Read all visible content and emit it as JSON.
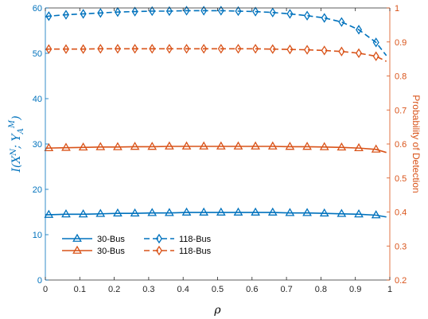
{
  "chart_data": {
    "type": "line",
    "title": "",
    "xlabel": "ρ",
    "ylabel_left": "I(X^N; Y_A^M)",
    "ylabel_right": "Probability of Detection",
    "xlim": [
      0,
      1
    ],
    "ylim_left": [
      0,
      60
    ],
    "ylim_right": [
      0.2,
      1.0
    ],
    "xticks": [
      "0",
      "0.1",
      "0.2",
      "0.3",
      "0.4",
      "0.5",
      "0.6",
      "0.7",
      "0.8",
      "0.9",
      "1"
    ],
    "yticks_left": [
      "0",
      "10",
      "20",
      "30",
      "40",
      "50",
      "60"
    ],
    "yticks_right": [
      "0.2",
      "0.3",
      "0.4",
      "0.5",
      "0.6",
      "0.7",
      "0.8",
      "0.9",
      "1"
    ],
    "colors": {
      "left": "#0072BD",
      "right": "#D95319"
    },
    "legend_position": "bottom-left",
    "series": [
      {
        "name": "30-Bus",
        "axis": "left",
        "color": "#0072BD",
        "linestyle": "solid",
        "marker": "triangle",
        "x": [
          0,
          0.01,
          0.06,
          0.11,
          0.16,
          0.21,
          0.26,
          0.31,
          0.36,
          0.41,
          0.46,
          0.51,
          0.56,
          0.61,
          0.66,
          0.71,
          0.76,
          0.81,
          0.86,
          0.91,
          0.96,
          0.99
        ],
        "y": [
          14.4,
          14.4,
          14.5,
          14.5,
          14.6,
          14.7,
          14.7,
          14.8,
          14.8,
          14.9,
          14.9,
          14.9,
          14.9,
          14.9,
          14.9,
          14.8,
          14.8,
          14.7,
          14.6,
          14.5,
          14.3,
          13.9
        ]
      },
      {
        "name": "118-Bus",
        "axis": "left",
        "color": "#0072BD",
        "linestyle": "dashed",
        "marker": "diamond",
        "x": [
          0,
          0.01,
          0.06,
          0.11,
          0.16,
          0.21,
          0.26,
          0.31,
          0.36,
          0.41,
          0.46,
          0.51,
          0.56,
          0.61,
          0.66,
          0.71,
          0.76,
          0.81,
          0.86,
          0.91,
          0.96,
          0.99
        ],
        "y": [
          58.0,
          58.2,
          58.5,
          58.7,
          58.9,
          59.1,
          59.2,
          59.3,
          59.3,
          59.4,
          59.4,
          59.4,
          59.3,
          59.2,
          59.0,
          58.7,
          58.3,
          57.8,
          56.9,
          55.2,
          52.4,
          49.5
        ]
      },
      {
        "name": "30-Bus",
        "axis": "right",
        "color": "#D95319",
        "linestyle": "solid",
        "marker": "triangle",
        "x": [
          0,
          0.01,
          0.06,
          0.11,
          0.16,
          0.21,
          0.26,
          0.31,
          0.36,
          0.41,
          0.46,
          0.51,
          0.56,
          0.61,
          0.66,
          0.71,
          0.76,
          0.81,
          0.86,
          0.91,
          0.96,
          0.99
        ],
        "y": [
          0.587,
          0.588,
          0.589,
          0.59,
          0.591,
          0.591,
          0.592,
          0.592,
          0.593,
          0.593,
          0.593,
          0.593,
          0.593,
          0.593,
          0.593,
          0.592,
          0.592,
          0.591,
          0.59,
          0.588,
          0.584,
          0.575
        ]
      },
      {
        "name": "118-Bus",
        "axis": "right",
        "color": "#D95319",
        "linestyle": "dashed",
        "marker": "diamond",
        "x": [
          0,
          0.01,
          0.06,
          0.11,
          0.16,
          0.21,
          0.26,
          0.31,
          0.36,
          0.41,
          0.46,
          0.51,
          0.56,
          0.61,
          0.66,
          0.71,
          0.76,
          0.81,
          0.86,
          0.91,
          0.96,
          0.99
        ],
        "y": [
          0.878,
          0.879,
          0.879,
          0.879,
          0.88,
          0.88,
          0.88,
          0.88,
          0.88,
          0.88,
          0.88,
          0.88,
          0.88,
          0.88,
          0.879,
          0.878,
          0.877,
          0.875,
          0.872,
          0.867,
          0.858,
          0.843
        ]
      }
    ]
  }
}
